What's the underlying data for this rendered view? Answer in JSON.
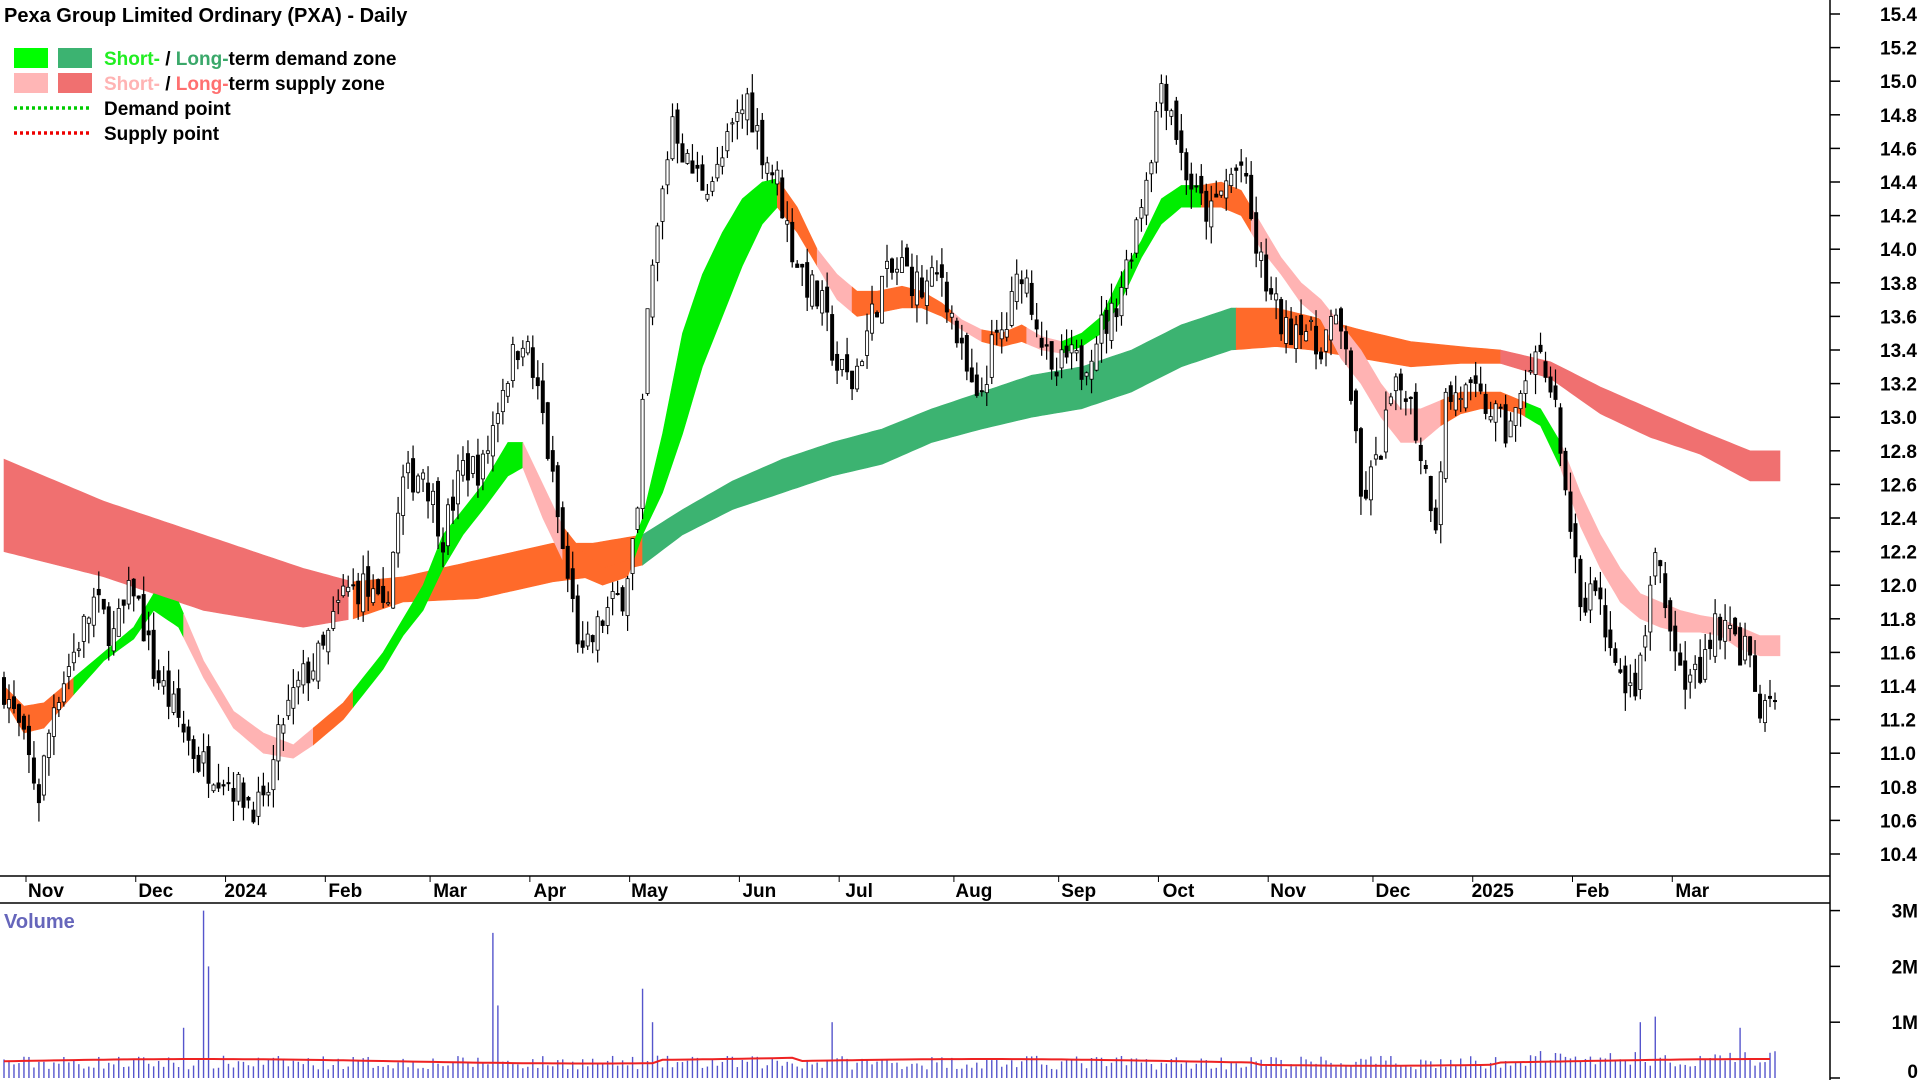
{
  "chart_data": {
    "type": "candlestick",
    "title": "Pexa Group Limited Ordinary (PXA) - Daily",
    "legend": [
      {
        "label_parts": [
          {
            "text": "Short-",
            "color": "#22ee22"
          },
          {
            "text": " / ",
            "color": "#000000"
          },
          {
            "text": "Long-",
            "color": "#3aa86a"
          },
          {
            "text": "term demand zone",
            "color": "#000000"
          }
        ],
        "swatches": [
          "#00ff00",
          "#3cb371"
        ]
      },
      {
        "label_parts": [
          {
            "text": "Short-",
            "color": "#ffb3b3"
          },
          {
            "text": " / ",
            "color": "#000000"
          },
          {
            "text": "Long-",
            "color": "#ff7070"
          },
          {
            "text": "term supply zone",
            "color": "#000000"
          }
        ],
        "swatches": [
          "#ffb6b6",
          "#f07070"
        ]
      },
      {
        "label_parts": [
          {
            "text": "Demand point",
            "color": "#000000"
          }
        ],
        "line_color": "#00cc00"
      },
      {
        "label_parts": [
          {
            "text": "Supply point",
            "color": "#000000"
          }
        ],
        "line_color": "#ee0000"
      }
    ],
    "x_labels": [
      "Nov",
      "Dec",
      "2024",
      "Feb",
      "Mar",
      "Apr",
      "May",
      "Jun",
      "Jul",
      "Aug",
      "Sep",
      "Oct",
      "Nov",
      "Dec",
      "2025",
      "Feb",
      "Mar"
    ],
    "x_label_day": [
      0,
      22,
      40,
      60,
      81,
      101,
      121,
      143,
      163,
      186,
      207,
      227,
      249,
      270,
      290,
      310,
      330
    ],
    "total_days": 356,
    "y_ticks": [
      "15.4",
      "15.2",
      "15.0",
      "14.8",
      "14.6",
      "14.4",
      "14.2",
      "14.0",
      "13.8",
      "13.6",
      "13.4",
      "13.2",
      "13.0",
      "12.8",
      "12.6",
      "12.4",
      "12.2",
      "12.0",
      "11.8",
      "11.6",
      "11.4",
      "11.2",
      "11.0",
      "10.8",
      "10.6",
      "10.4"
    ],
    "ylim": [
      10.2,
      15.4
    ],
    "price_anchors": [
      [
        0,
        11.4
      ],
      [
        4,
        11.05
      ],
      [
        7,
        10.75
      ],
      [
        10,
        11.3
      ],
      [
        14,
        11.6
      ],
      [
        18,
        11.9
      ],
      [
        22,
        11.7
      ],
      [
        26,
        12.0
      ],
      [
        30,
        11.5
      ],
      [
        35,
        11.2
      ],
      [
        39,
        10.95
      ],
      [
        43,
        10.9
      ],
      [
        48,
        10.75
      ],
      [
        52,
        10.65
      ],
      [
        56,
        11.2
      ],
      [
        60,
        11.45
      ],
      [
        64,
        11.6
      ],
      [
        68,
        11.95
      ],
      [
        72,
        12.0
      ],
      [
        76,
        11.8
      ],
      [
        80,
        12.6
      ],
      [
        84,
        12.7
      ],
      [
        88,
        12.3
      ],
      [
        92,
        12.7
      ],
      [
        96,
        12.7
      ],
      [
        100,
        13.2
      ],
      [
        104,
        13.5
      ],
      [
        108,
        13.0
      ],
      [
        112,
        12.2
      ],
      [
        116,
        11.55
      ],
      [
        120,
        11.8
      ],
      [
        124,
        11.95
      ],
      [
        127,
        12.4
      ],
      [
        129,
        13.6
      ],
      [
        131,
        14.1
      ],
      [
        134,
        14.8
      ],
      [
        137,
        14.5
      ],
      [
        140,
        14.4
      ],
      [
        143,
        14.45
      ],
      [
        146,
        14.7
      ],
      [
        149,
        14.9
      ],
      [
        152,
        14.6
      ],
      [
        155,
        14.4
      ],
      [
        158,
        14.0
      ],
      [
        161,
        13.8
      ],
      [
        164,
        13.65
      ],
      [
        167,
        13.3
      ],
      [
        170,
        13.2
      ],
      [
        173,
        13.5
      ],
      [
        176,
        13.8
      ],
      [
        180,
        13.9
      ],
      [
        184,
        13.75
      ],
      [
        188,
        13.85
      ],
      [
        192,
        13.35
      ],
      [
        195,
        13.05
      ],
      [
        198,
        13.4
      ],
      [
        201,
        13.55
      ],
      [
        204,
        13.9
      ],
      [
        207,
        13.6
      ],
      [
        210,
        13.2
      ],
      [
        213,
        13.35
      ],
      [
        216,
        13.3
      ],
      [
        219,
        13.5
      ],
      [
        222,
        13.6
      ],
      [
        225,
        13.9
      ],
      [
        228,
        14.3
      ],
      [
        230,
        14.6
      ],
      [
        232,
        15.0
      ],
      [
        234,
        14.85
      ],
      [
        236,
        14.55
      ],
      [
        239,
        14.3
      ],
      [
        242,
        14.2
      ],
      [
        245,
        14.4
      ],
      [
        248,
        14.5
      ],
      [
        251,
        14.0
      ],
      [
        254,
        13.7
      ],
      [
        257,
        13.5
      ],
      [
        260,
        13.6
      ],
      [
        263,
        13.4
      ],
      [
        266,
        13.55
      ],
      [
        269,
        13.45
      ],
      [
        272,
        12.5
      ],
      [
        275,
        12.7
      ],
      [
        278,
        13.1
      ],
      [
        281,
        13.2
      ],
      [
        284,
        12.8
      ],
      [
        287,
        12.4
      ],
      [
        289,
        13.1
      ],
      [
        292,
        13.15
      ],
      [
        295,
        13.1
      ],
      [
        298,
        13.05
      ],
      [
        301,
        12.9
      ],
      [
        304,
        13.1
      ],
      [
        307,
        13.3
      ],
      [
        310,
        13.25
      ],
      [
        313,
        12.6
      ],
      [
        316,
        11.8
      ],
      [
        319,
        12.0
      ],
      [
        322,
        11.6
      ],
      [
        325,
        11.3
      ],
      [
        328,
        11.5
      ],
      [
        331,
        12.2
      ],
      [
        334,
        11.7
      ],
      [
        337,
        11.4
      ],
      [
        340,
        11.5
      ],
      [
        343,
        11.8
      ],
      [
        346,
        11.7
      ],
      [
        349,
        11.6
      ],
      [
        352,
        11.25
      ]
    ],
    "zones": {
      "long_term": [
        [
          0,
          12.75,
          12.2
        ],
        [
          20,
          12.5,
          12.05
        ],
        [
          40,
          12.3,
          11.85
        ],
        [
          60,
          12.1,
          11.75
        ],
        [
          70,
          12.02,
          11.8
        ],
        [
          80,
          12.05,
          11.9
        ],
        [
          95,
          12.15,
          11.92
        ],
        [
          110,
          12.25,
          12.02
        ],
        [
          118,
          12.25,
          12.05
        ],
        [
          128,
          12.3,
          12.12
        ],
        [
          136,
          12.45,
          12.3
        ],
        [
          146,
          12.62,
          12.45
        ],
        [
          156,
          12.75,
          12.55
        ],
        [
          166,
          12.85,
          12.65
        ],
        [
          176,
          12.93,
          12.72
        ],
        [
          186,
          13.05,
          12.85
        ],
        [
          196,
          13.15,
          12.93
        ],
        [
          206,
          13.25,
          13.0
        ],
        [
          216,
          13.3,
          13.05
        ],
        [
          226,
          13.4,
          13.15
        ],
        [
          236,
          13.55,
          13.3
        ],
        [
          246,
          13.65,
          13.4
        ],
        [
          255,
          13.65,
          13.42
        ],
        [
          262,
          13.6,
          13.4
        ],
        [
          272,
          13.52,
          13.35
        ],
        [
          282,
          13.45,
          13.3
        ],
        [
          292,
          13.42,
          13.32
        ],
        [
          300,
          13.4,
          13.32
        ],
        [
          310,
          13.33,
          13.23
        ],
        [
          320,
          13.18,
          13.02
        ],
        [
          330,
          13.05,
          12.88
        ],
        [
          340,
          12.92,
          12.78
        ],
        [
          350,
          12.8,
          12.62
        ]
      ],
      "long_term_colors": [
        [
          0,
          69,
          "#f07070"
        ],
        [
          70,
          128,
          "#ff6a2a"
        ],
        [
          128,
          247,
          "#3cb371"
        ],
        [
          247,
          300,
          "#ff6a2a"
        ],
        [
          300,
          356,
          "#f07070"
        ]
      ],
      "short_term": [
        [
          0,
          11.4,
          11.32
        ],
        [
          4,
          11.28,
          11.12
        ],
        [
          8,
          11.3,
          11.15
        ],
        [
          14,
          11.45,
          11.35
        ],
        [
          20,
          11.6,
          11.55
        ],
        [
          26,
          11.75,
          11.68
        ],
        [
          30,
          11.95,
          11.85
        ],
        [
          35,
          11.9,
          11.75
        ],
        [
          40,
          11.55,
          11.45
        ],
        [
          46,
          11.25,
          11.15
        ],
        [
          52,
          11.12,
          11.0
        ],
        [
          58,
          11.05,
          10.97
        ],
        [
          62,
          11.15,
          11.05
        ],
        [
          68,
          11.3,
          11.2
        ],
        [
          72,
          11.45,
          11.35
        ],
        [
          76,
          11.6,
          11.5
        ],
        [
          80,
          11.8,
          11.7
        ],
        [
          84,
          12.0,
          11.85
        ],
        [
          88,
          12.3,
          12.1
        ],
        [
          92,
          12.45,
          12.3
        ],
        [
          96,
          12.6,
          12.45
        ],
        [
          101,
          12.85,
          12.65
        ],
        [
          104,
          12.85,
          12.7
        ],
        [
          108,
          12.6,
          12.4
        ],
        [
          112,
          12.35,
          12.15
        ],
        [
          116,
          12.2,
          12.05
        ],
        [
          120,
          12.1,
          12.0
        ],
        [
          125,
          12.15,
          12.05
        ],
        [
          128,
          12.4,
          12.3
        ],
        [
          132,
          12.9,
          12.55
        ],
        [
          136,
          13.5,
          12.9
        ],
        [
          140,
          13.85,
          13.3
        ],
        [
          144,
          14.1,
          13.6
        ],
        [
          148,
          14.3,
          13.9
        ],
        [
          152,
          14.4,
          14.15
        ],
        [
          155,
          14.42,
          14.25
        ],
        [
          159,
          14.25,
          14.1
        ],
        [
          163,
          14.0,
          13.9
        ],
        [
          167,
          13.85,
          13.7
        ],
        [
          171,
          13.75,
          13.6
        ],
        [
          175,
          13.75,
          13.62
        ],
        [
          180,
          13.78,
          13.65
        ],
        [
          184,
          13.75,
          13.65
        ],
        [
          188,
          13.68,
          13.6
        ],
        [
          192,
          13.58,
          13.52
        ],
        [
          196,
          13.52,
          13.45
        ],
        [
          200,
          13.5,
          13.42
        ],
        [
          204,
          13.55,
          13.45
        ],
        [
          208,
          13.48,
          13.4
        ],
        [
          212,
          13.45,
          13.38
        ],
        [
          216,
          13.5,
          13.42
        ],
        [
          220,
          13.6,
          13.5
        ],
        [
          224,
          13.85,
          13.7
        ],
        [
          228,
          14.05,
          13.95
        ],
        [
          232,
          14.3,
          14.15
        ],
        [
          236,
          14.38,
          14.25
        ],
        [
          240,
          14.38,
          14.25
        ],
        [
          244,
          14.4,
          14.25
        ],
        [
          248,
          14.35,
          14.2
        ],
        [
          252,
          14.15,
          14.0
        ],
        [
          256,
          13.95,
          13.85
        ],
        [
          260,
          13.8,
          13.68
        ],
        [
          264,
          13.7,
          13.58
        ],
        [
          268,
          13.55,
          13.35
        ],
        [
          272,
          13.4,
          13.2
        ],
        [
          276,
          13.2,
          13.0
        ],
        [
          280,
          13.05,
          12.85
        ],
        [
          284,
          13.05,
          12.85
        ],
        [
          288,
          13.1,
          12.95
        ],
        [
          292,
          13.15,
          13.02
        ],
        [
          296,
          13.15,
          13.05
        ],
        [
          300,
          13.15,
          13.05
        ],
        [
          304,
          13.1,
          13.02
        ],
        [
          308,
          13.05,
          12.95
        ],
        [
          312,
          12.85,
          12.7
        ],
        [
          316,
          12.55,
          12.35
        ],
        [
          320,
          12.3,
          12.1
        ],
        [
          324,
          12.1,
          11.9
        ],
        [
          328,
          11.95,
          11.8
        ],
        [
          332,
          11.9,
          11.75
        ],
        [
          336,
          11.85,
          11.72
        ],
        [
          340,
          11.82,
          11.72
        ],
        [
          344,
          11.8,
          11.7
        ],
        [
          348,
          11.75,
          11.62
        ],
        [
          352,
          11.7,
          11.58
        ]
      ],
      "short_term_colors": [
        [
          0,
          8,
          "#ff6a2a"
        ],
        [
          8,
          14,
          "#ff6a2a"
        ],
        [
          14,
          36,
          "#00ee00"
        ],
        [
          36,
          62,
          "#ffb3b3"
        ],
        [
          62,
          70,
          "#ff6a2a"
        ],
        [
          70,
          104,
          "#00ee00"
        ],
        [
          104,
          112,
          "#ffb3b3"
        ],
        [
          112,
          126,
          "#ff6a2a"
        ],
        [
          126,
          155,
          "#00ee00"
        ],
        [
          155,
          163,
          "#ff6a2a"
        ],
        [
          163,
          170,
          "#ffb3b3"
        ],
        [
          170,
          190,
          "#ff6a2a"
        ],
        [
          190,
          196,
          "#ffb3b3"
        ],
        [
          196,
          205,
          "#ff6a2a"
        ],
        [
          205,
          212,
          "#ffb3b3"
        ],
        [
          212,
          222,
          "#00ee00"
        ],
        [
          222,
          240,
          "#00ee00"
        ],
        [
          240,
          250,
          "#ff6a2a"
        ],
        [
          250,
          262,
          "#ffb3b3"
        ],
        [
          262,
          270,
          "#ffb3b3"
        ],
        [
          270,
          288,
          "#ffb3b3"
        ],
        [
          288,
          305,
          "#ff6a2a"
        ],
        [
          305,
          312,
          "#00ee00"
        ],
        [
          312,
          356,
          "#ffb3b3"
        ]
      ]
    },
    "volume": {
      "label": "Volume",
      "y_ticks": [
        "3M",
        "2M",
        "1M",
        "0"
      ],
      "ylim": [
        0,
        3100000
      ],
      "avg_line_color": "#ee2222",
      "bar_color": "#5555cc",
      "spikes": [
        [
          40,
          3000000
        ],
        [
          41,
          2000000
        ],
        [
          36,
          900000
        ],
        [
          98,
          2600000
        ],
        [
          99,
          1300000
        ],
        [
          128,
          1600000
        ],
        [
          130,
          1000000
        ],
        [
          166,
          1000000
        ],
        [
          328,
          1000000
        ],
        [
          331,
          1100000
        ],
        [
          348,
          900000
        ]
      ]
    }
  }
}
